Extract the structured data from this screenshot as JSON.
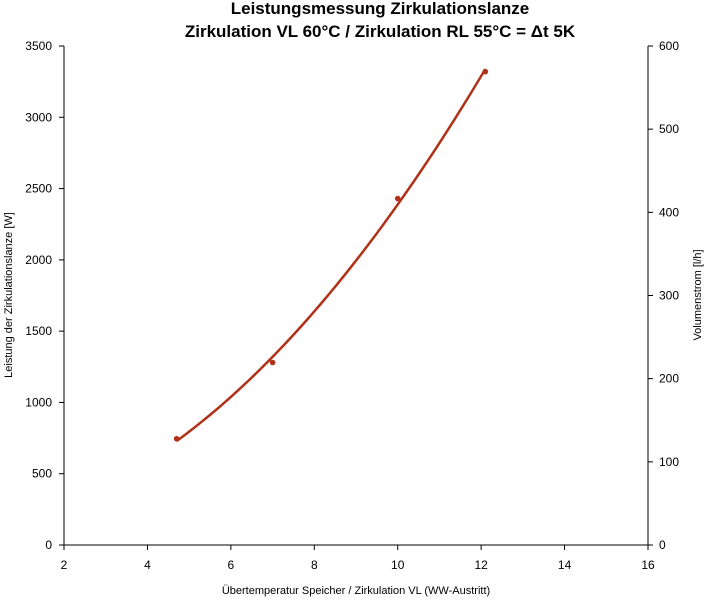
{
  "chart_data": {
    "type": "scatter",
    "title_line1": "Leistungsmessung Zirkulationslanze",
    "title_line2": "Zirkulation VL 60°C / Zirkulation RL 55°C = Δt 5K",
    "xlabel": "Übertemperatur Speicher / Zirkulation VL (WW-Austritt)",
    "ylabel": "Leistung der Zirkulationslanze [W]",
    "y2label": "Volumenstrom [l/h]",
    "xlim": [
      2,
      16
    ],
    "ylim": [
      0,
      3500
    ],
    "y2lim": [
      0,
      600
    ],
    "x_ticks": [
      2,
      4,
      6,
      8,
      10,
      12,
      14,
      16
    ],
    "y_ticks": [
      0,
      500,
      1000,
      1500,
      2000,
      2500,
      3000,
      3500
    ],
    "y2_ticks": [
      0,
      100,
      200,
      300,
      400,
      500,
      600
    ],
    "grid": false,
    "series": [
      {
        "x": [
          4.7,
          7.0,
          10.0,
          12.1
        ],
        "y": [
          745,
          1280,
          2430,
          3320
        ],
        "color": "#b03018",
        "trendline": "polynomial"
      }
    ]
  }
}
